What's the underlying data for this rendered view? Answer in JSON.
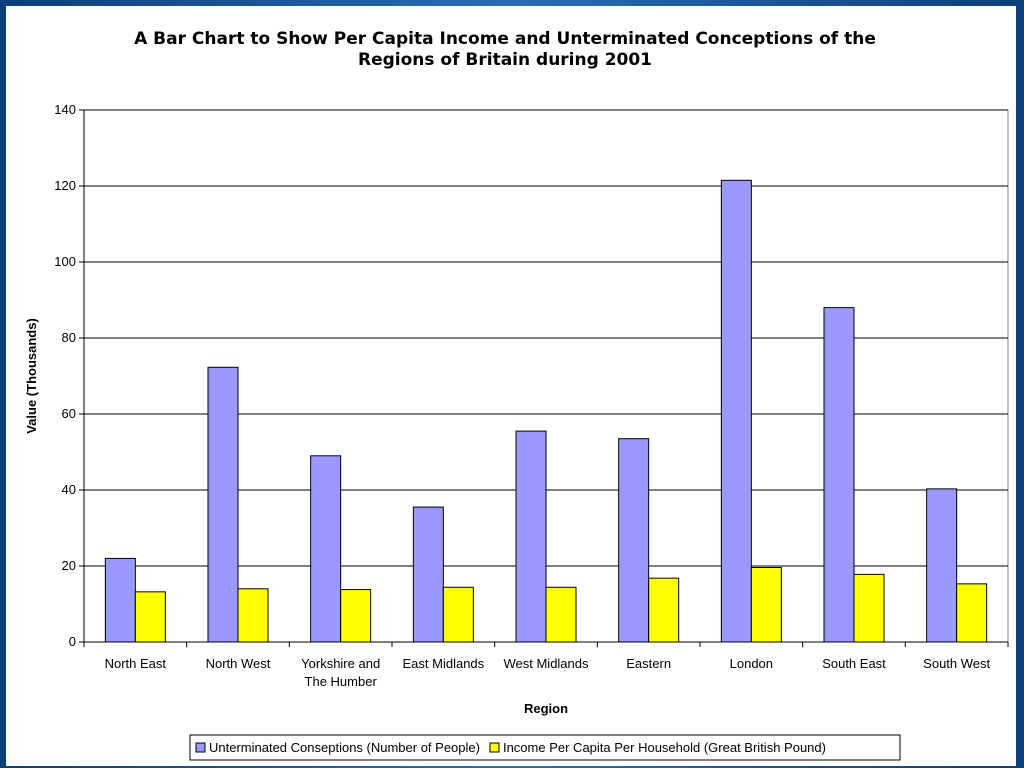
{
  "chart_data": {
    "type": "bar",
    "title_lines": [
      "A Bar Chart to Show Per Capita Income and Unterminated Conceptions of the",
      "Regions of Britain during 2001"
    ],
    "xlabel": "Region",
    "ylabel": "Value (Thousands)",
    "ylim": [
      0,
      140
    ],
    "yticks": [
      0,
      20,
      40,
      60,
      80,
      100,
      120,
      140
    ],
    "grid": true,
    "legend_position": "bottom",
    "categories": [
      [
        "North East"
      ],
      [
        "North West"
      ],
      [
        "Yorkshire and",
        "The Humber"
      ],
      [
        "East Midlands"
      ],
      [
        "West Midlands"
      ],
      [
        "Eastern"
      ],
      [
        "London"
      ],
      [
        "South East"
      ],
      [
        "South West"
      ]
    ],
    "series": [
      {
        "name": "Unterminated Conseptions (Number of People)",
        "color": "#9999ff",
        "values": [
          22,
          72.3,
          49,
          35.5,
          55.5,
          53.5,
          121.5,
          88,
          40.3
        ]
      },
      {
        "name": "Income Per Capita Per Household (Great British Pound)",
        "color": "#ffff00",
        "values": [
          13.2,
          14,
          13.8,
          14.4,
          14.4,
          16.8,
          19.6,
          17.8,
          15.3
        ]
      }
    ]
  }
}
